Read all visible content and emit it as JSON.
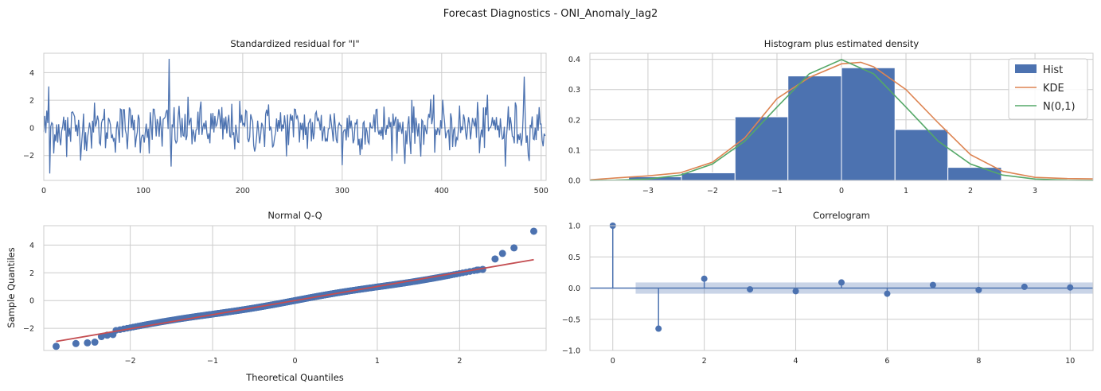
{
  "suptitle": "Forecast Diagnostics - ONI_Anomaly_lag2",
  "colors": {
    "main": "#4c72b0",
    "kde": "#dd8452",
    "normal": "#55a868",
    "qqline": "#c44e52",
    "grid": "#cccccc",
    "band": "#4c72b0"
  },
  "chart_data": [
    {
      "type": "line",
      "title": "Standardized residual for \"I\"",
      "xlim": [
        0,
        505
      ],
      "ylim": [
        -3.8,
        5.4
      ],
      "xticks": [
        0,
        100,
        200,
        300,
        400,
        500
      ],
      "yticks": [
        -2,
        0,
        2,
        4
      ],
      "xtick_labels": [
        "0",
        "100",
        "200",
        "300",
        "400",
        "500"
      ],
      "ytick_labels": [
        "−2",
        "0",
        "2",
        "4"
      ],
      "n": 505,
      "notable_points": [
        {
          "x": 5,
          "y": 3.0
        },
        {
          "x": 6,
          "y": -3.3
        },
        {
          "x": 23,
          "y": -2.1
        },
        {
          "x": 126,
          "y": 5.0
        },
        {
          "x": 128,
          "y": -2.8
        },
        {
          "x": 300,
          "y": -2.7
        },
        {
          "x": 363,
          "y": -2.6
        },
        {
          "x": 464,
          "y": -2.8
        },
        {
          "x": 483,
          "y": 3.7
        }
      ],
      "grid": true
    },
    {
      "type": "bar",
      "title": "Histogram plus estimated density",
      "xlim": [
        -3.9,
        3.9
      ],
      "ylim": [
        0,
        0.42
      ],
      "xticks": [
        -3,
        -2,
        -1,
        0,
        1,
        2,
        3
      ],
      "yticks": [
        0.0,
        0.1,
        0.2,
        0.3,
        0.4
      ],
      "xtick_labels": [
        "−3",
        "−2",
        "−1",
        "0",
        "1",
        "2",
        "3"
      ],
      "ytick_labels": [
        "0.0",
        "0.1",
        "0.2",
        "0.3",
        "0.4"
      ],
      "bins": [
        {
          "x0": -3.3,
          "x1": -2.48,
          "height": 0.012
        },
        {
          "x0": -2.48,
          "x1": -1.65,
          "height": 0.025
        },
        {
          "x0": -1.65,
          "x1": -0.83,
          "height": 0.21
        },
        {
          "x0": -0.83,
          "x1": 0.0,
          "height": 0.345
        },
        {
          "x0": 0.0,
          "x1": 0.83,
          "height": 0.372
        },
        {
          "x0": 0.83,
          "x1": 1.65,
          "height": 0.168
        },
        {
          "x0": 1.65,
          "x1": 2.48,
          "height": 0.043
        }
      ],
      "series": [
        {
          "name": "KDE",
          "x": [
            -3.9,
            -3.5,
            -3.0,
            -2.5,
            -2.0,
            -1.5,
            -1.0,
            -0.5,
            0.0,
            0.3,
            0.5,
            1.0,
            1.5,
            2.0,
            2.5,
            3.0,
            3.5,
            3.9
          ],
          "y": [
            0.002,
            0.008,
            0.015,
            0.025,
            0.06,
            0.14,
            0.27,
            0.34,
            0.385,
            0.39,
            0.375,
            0.3,
            0.19,
            0.085,
            0.03,
            0.01,
            0.006,
            0.005
          ]
        },
        {
          "name": "N(0,1)",
          "x": [
            -3.9,
            -3.5,
            -3.0,
            -2.5,
            -2.0,
            -1.5,
            -1.0,
            -0.5,
            0.0,
            0.5,
            1.0,
            1.5,
            2.0,
            2.5,
            3.0,
            3.5,
            3.9
          ],
          "y": [
            0.0002,
            0.0009,
            0.0044,
            0.0175,
            0.054,
            0.1295,
            0.242,
            0.352,
            0.399,
            0.352,
            0.242,
            0.1295,
            0.054,
            0.0175,
            0.0044,
            0.0009,
            0.0002
          ]
        }
      ],
      "legend": [
        "Hist",
        "KDE",
        "N(0,1)"
      ],
      "legend_position": "top-right",
      "grid": true
    },
    {
      "type": "scatter",
      "title": "Normal Q-Q",
      "xlabel": "Theoretical Quantiles",
      "ylabel": "Sample Quantiles",
      "xlim": [
        -3.05,
        3.05
      ],
      "ylim": [
        -3.6,
        5.4
      ],
      "xticks": [
        -2,
        -1,
        0,
        1,
        2
      ],
      "yticks": [
        -2,
        0,
        2,
        4
      ],
      "xtick_labels": [
        "−2",
        "−1",
        "0",
        "1",
        "2"
      ],
      "ytick_labels": [
        "−2",
        "0",
        "2",
        "4"
      ],
      "n": 505,
      "line": {
        "x": [
          -2.9,
          2.9
        ],
        "y": [
          -2.95,
          2.95
        ]
      },
      "tail_points": [
        {
          "x": -2.9,
          "y": -3.3
        },
        {
          "x": -2.66,
          "y": -3.1
        },
        {
          "x": -2.52,
          "y": -3.05
        },
        {
          "x": -2.43,
          "y": -3.0
        },
        {
          "x": -2.35,
          "y": -2.6
        },
        {
          "x": -2.28,
          "y": -2.5
        },
        {
          "x": -2.21,
          "y": -2.45
        },
        {
          "x": 2.21,
          "y": 2.2
        },
        {
          "x": 2.28,
          "y": 2.25
        },
        {
          "x": 2.43,
          "y": 3.0
        },
        {
          "x": 2.52,
          "y": 3.4
        },
        {
          "x": 2.66,
          "y": 3.8
        },
        {
          "x": 2.9,
          "y": 5.0
        }
      ],
      "grid": true
    },
    {
      "type": "bar",
      "title": "Correlogram",
      "xlim": [
        -0.5,
        10.5
      ],
      "ylim": [
        -1.0,
        1.0
      ],
      "xticks": [
        0,
        2,
        4,
        6,
        8,
        10
      ],
      "yticks": [
        -1.0,
        -0.5,
        0.0,
        0.5,
        1.0
      ],
      "xtick_labels": [
        "0",
        "2",
        "4",
        "6",
        "8",
        "10"
      ],
      "ytick_labels": [
        "−1.0",
        "−0.5",
        "0.0",
        "0.5",
        "1.0"
      ],
      "lags": [
        0,
        1,
        2,
        3,
        4,
        5,
        6,
        7,
        8,
        9,
        10
      ],
      "values": [
        1.0,
        -0.65,
        0.15,
        -0.02,
        -0.05,
        0.09,
        -0.09,
        0.05,
        -0.03,
        0.02,
        0.01
      ],
      "confidence_band": {
        "x": [
          0.5,
          10.5
        ],
        "lower": -0.09,
        "upper": 0.09
      },
      "grid": true
    }
  ]
}
